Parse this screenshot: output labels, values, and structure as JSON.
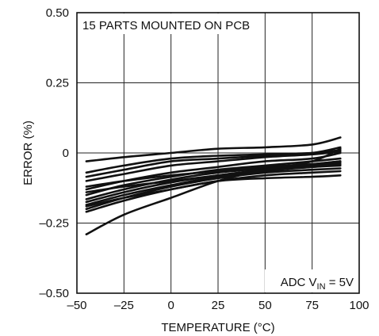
{
  "chart_data": {
    "type": "line",
    "title": "",
    "xlabel": "TEMPERATURE (°C)",
    "ylabel": "ERROR (%)",
    "xlim": [
      -50,
      100
    ],
    "ylim": [
      -0.5,
      0.5
    ],
    "x_ticks": [
      "–50",
      "–25",
      "0",
      "25",
      "50",
      "75",
      "100"
    ],
    "y_ticks": [
      "0.50",
      "0.25",
      "0",
      "–0.25",
      "–0.50"
    ],
    "x_tick_values": [
      -50,
      -25,
      0,
      25,
      50,
      75,
      100
    ],
    "y_tick_values": [
      0.5,
      0.25,
      0,
      -0.25,
      -0.5
    ],
    "grid": true,
    "annotations": {
      "top_left": "15 PARTS MOUNTED ON PCB",
      "bottom_right_prefix": "ADC V",
      "bottom_right_subscript": "IN",
      "bottom_right_suffix": " = 5V"
    },
    "x": [
      -45,
      -25,
      0,
      25,
      50,
      75,
      90
    ],
    "series": [
      {
        "values": [
          -0.03,
          -0.015,
          0.0,
          0.015,
          0.02,
          0.03,
          0.055
        ]
      },
      {
        "values": [
          -0.07,
          -0.045,
          -0.02,
          -0.01,
          -0.005,
          0.0,
          0.01
        ]
      },
      {
        "values": [
          -0.085,
          -0.06,
          -0.03,
          -0.02,
          -0.01,
          0.0,
          0.02
        ]
      },
      {
        "values": [
          -0.1,
          -0.075,
          -0.045,
          -0.03,
          -0.015,
          -0.005,
          0.005
        ]
      },
      {
        "values": [
          -0.13,
          -0.1,
          -0.07,
          -0.05,
          -0.03,
          -0.02,
          0.0
        ]
      },
      {
        "values": [
          -0.15,
          -0.115,
          -0.085,
          -0.06,
          -0.045,
          -0.03,
          -0.02
        ]
      },
      {
        "values": [
          -0.165,
          -0.13,
          -0.095,
          -0.07,
          -0.055,
          -0.04,
          -0.03
        ]
      },
      {
        "values": [
          -0.175,
          -0.14,
          -0.105,
          -0.08,
          -0.06,
          -0.045,
          -0.035
        ]
      },
      {
        "values": [
          -0.185,
          -0.15,
          -0.115,
          -0.085,
          -0.065,
          -0.05,
          -0.045
        ]
      },
      {
        "values": [
          -0.2,
          -0.16,
          -0.12,
          -0.09,
          -0.07,
          -0.06,
          -0.055
        ]
      },
      {
        "values": [
          -0.14,
          -0.12,
          -0.1,
          -0.08,
          -0.06,
          -0.05,
          -0.04
        ]
      },
      {
        "values": [
          -0.12,
          -0.1,
          -0.08,
          -0.065,
          -0.05,
          -0.04,
          -0.03
        ]
      },
      {
        "values": [
          -0.21,
          -0.17,
          -0.13,
          -0.1,
          -0.08,
          -0.07,
          -0.065
        ]
      },
      {
        "values": [
          -0.19,
          -0.16,
          -0.13,
          -0.1,
          -0.09,
          -0.085,
          -0.08
        ]
      },
      {
        "values": [
          -0.29,
          -0.22,
          -0.16,
          -0.1,
          -0.06,
          -0.03,
          0.015
        ]
      }
    ]
  }
}
